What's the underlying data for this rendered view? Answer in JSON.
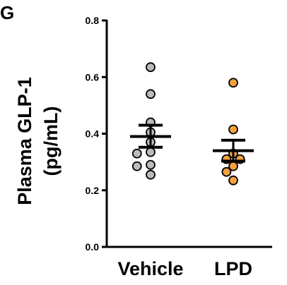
{
  "panel_label": "G",
  "chart_data": {
    "type": "scatter",
    "ylabel_line1": "Plasma GLP-1",
    "ylabel_line2": "(pg/mL)",
    "xlabel": "",
    "ylim": [
      0,
      0.8
    ],
    "yticks": [
      "0.0",
      "0.2",
      "0.4",
      "0.6",
      "0.8"
    ],
    "ytick_values": [
      0,
      0.2,
      0.4,
      0.6,
      0.8
    ],
    "categories": [
      "Vehicle",
      "LPD"
    ],
    "grid": false,
    "groups": [
      {
        "category": "Vehicle",
        "color": "#b9bbbe",
        "values": [
          0.635,
          0.54,
          0.44,
          0.405,
          0.37,
          0.335,
          0.33,
          0.29,
          0.285,
          0.255
        ],
        "mean": 0.39,
        "sem_low": 0.352,
        "sem_high": 0.43
      },
      {
        "category": "LPD",
        "color": "#f3a03f",
        "values": [
          0.58,
          0.415,
          0.33,
          0.31,
          0.31,
          0.285,
          0.265,
          0.235
        ],
        "mean": 0.34,
        "sem_low": 0.303,
        "sem_high": 0.377
      }
    ]
  }
}
